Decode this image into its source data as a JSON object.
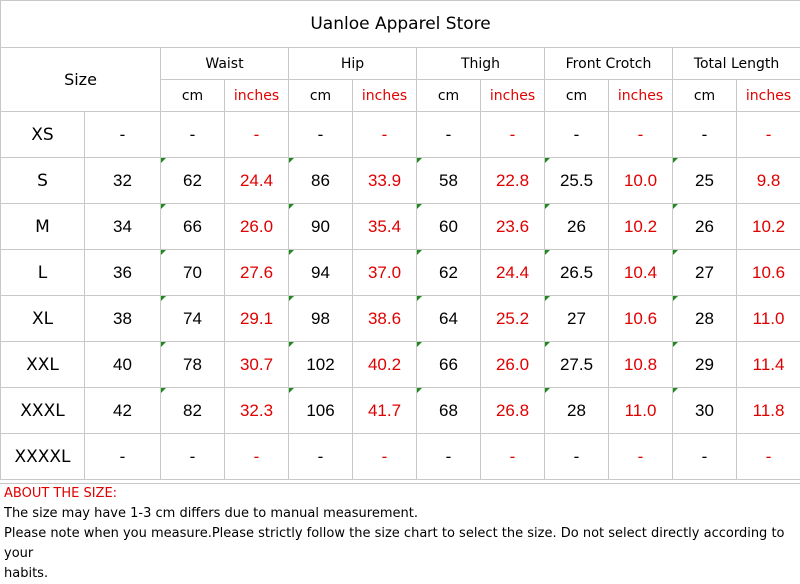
{
  "store_title": "Uanloe Apparel Store",
  "size_header": "Size",
  "unit_cm": "cm",
  "unit_inches": "inches",
  "groups": [
    "Waist",
    "Hip",
    "Thigh",
    "Front Crotch",
    "Total Length"
  ],
  "rows": [
    {
      "size": "XS",
      "num": "-",
      "vals": [
        [
          "-",
          "-"
        ],
        [
          "-",
          "-"
        ],
        [
          "-",
          "-"
        ],
        [
          "-",
          "-"
        ],
        [
          "-",
          "-"
        ]
      ]
    },
    {
      "size": "S",
      "num": "32",
      "vals": [
        [
          "62",
          "24.4"
        ],
        [
          "86",
          "33.9"
        ],
        [
          "58",
          "22.8"
        ],
        [
          "25.5",
          "10.0"
        ],
        [
          "25",
          "9.8"
        ]
      ]
    },
    {
      "size": "M",
      "num": "34",
      "vals": [
        [
          "66",
          "26.0"
        ],
        [
          "90",
          "35.4"
        ],
        [
          "60",
          "23.6"
        ],
        [
          "26",
          "10.2"
        ],
        [
          "26",
          "10.2"
        ]
      ]
    },
    {
      "size": "L",
      "num": "36",
      "vals": [
        [
          "70",
          "27.6"
        ],
        [
          "94",
          "37.0"
        ],
        [
          "62",
          "24.4"
        ],
        [
          "26.5",
          "10.4"
        ],
        [
          "27",
          "10.6"
        ]
      ]
    },
    {
      "size": "XL",
      "num": "38",
      "vals": [
        [
          "74",
          "29.1"
        ],
        [
          "98",
          "38.6"
        ],
        [
          "64",
          "25.2"
        ],
        [
          "27",
          "10.6"
        ],
        [
          "28",
          "11.0"
        ]
      ]
    },
    {
      "size": "XXL",
      "num": "40",
      "vals": [
        [
          "78",
          "30.7"
        ],
        [
          "102",
          "40.2"
        ],
        [
          "66",
          "26.0"
        ],
        [
          "27.5",
          "10.8"
        ],
        [
          "29",
          "11.4"
        ]
      ]
    },
    {
      "size": "XXXL",
      "num": "42",
      "vals": [
        [
          "82",
          "32.3"
        ],
        [
          "106",
          "41.7"
        ],
        [
          "68",
          "26.8"
        ],
        [
          "28",
          "11.0"
        ],
        [
          "30",
          "11.8"
        ]
      ]
    },
    {
      "size": "XXXXL",
      "num": "-",
      "vals": [
        [
          "-",
          "-"
        ],
        [
          "-",
          "-"
        ],
        [
          "-",
          "-"
        ],
        [
          "-",
          "-"
        ],
        [
          "-",
          "-"
        ]
      ]
    }
  ],
  "notes": {
    "heading": "ABOUT THE SIZE:",
    "line1": "The size may have 1-3 cm differs due to manual measurement.",
    "line2": "Please note when you measure.Please strictly follow the size chart  to select the size. Do not select directly according to your",
    "line3": "habits."
  },
  "colors": {
    "accent": "#e00000",
    "grid": "#c8c8c8",
    "flag": "#1f8a1f"
  }
}
